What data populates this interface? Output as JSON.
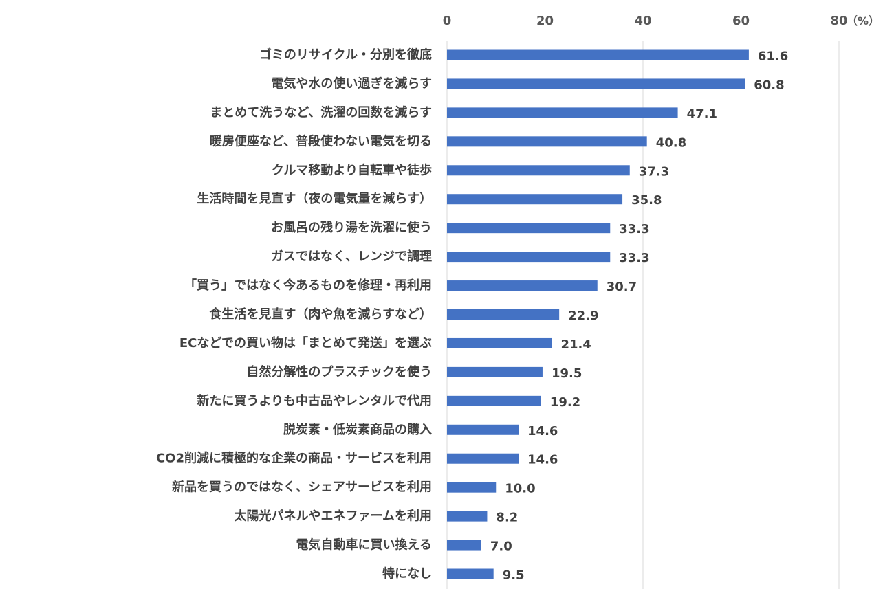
{
  "chart_data": {
    "type": "bar",
    "orientation": "horizontal",
    "title": "",
    "xlabel": "",
    "ylabel": "",
    "unit": "（%）",
    "xlim": [
      0,
      80
    ],
    "xticks": [
      "0",
      "20",
      "40",
      "60",
      "80"
    ],
    "grid": true,
    "legend": "none",
    "bar_color": "#4472C4",
    "categories": [
      "ゴミのリサイクル・分別を徹底",
      "電気や水の使い過ぎを減らす",
      "まとめて洗うなど、洗濯の回数を減らす",
      "暖房便座など、普段使わない電気を切る",
      "クルマ移動より自転車や徒歩",
      "生活時間を見直す（夜の電気量を減らす）",
      "お風呂の残り湯を洗濯に使う",
      "ガスではなく、レンジで調理",
      "「買う」ではなく今あるものを修理・再利用",
      "食生活を見直す（肉や魚を減らすなど）",
      "ECなどでの買い物は「まとめて発送」を選ぶ",
      "自然分解性のプラスチックを使う",
      "新たに買うよりも中古品やレンタルで代用",
      "脱炭素・低炭素商品の購入",
      "CO2削減に積極的な企業の商品・サービスを利用",
      "新品を買うのではなく、シェアサービスを利用",
      "太陽光パネルやエネファームを利用",
      "電気自動車に買い換える",
      "特になし"
    ],
    "values": [
      61.6,
      60.8,
      47.1,
      40.8,
      37.3,
      35.8,
      33.3,
      33.3,
      30.7,
      22.9,
      21.4,
      19.5,
      19.2,
      14.6,
      14.6,
      10.0,
      8.2,
      7.0,
      9.5
    ],
    "value_labels": [
      "61.6",
      "60.8",
      "47.1",
      "40.8",
      "37.3",
      "35.8",
      "33.3",
      "33.3",
      "30.7",
      "22.9",
      "21.4",
      "19.5",
      "19.2",
      "14.6",
      "14.6",
      "10.0",
      "8.2",
      "7.0",
      "9.5"
    ]
  }
}
